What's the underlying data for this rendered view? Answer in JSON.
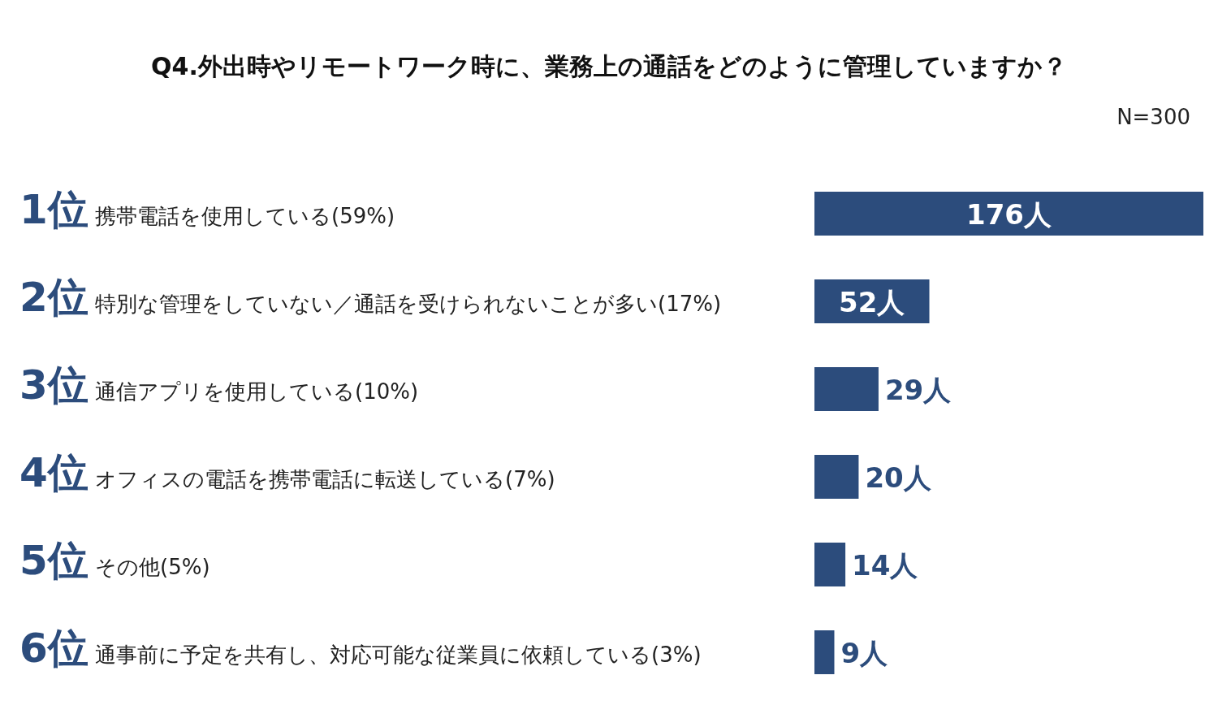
{
  "chart_data": {
    "type": "bar",
    "orientation": "horizontal",
    "title": "Q4.外出時やリモートワーク時に、業務上の通話をどのように管理していますか？",
    "annotations": [
      "N=300"
    ],
    "categories": [
      "1位 携帯電話を使用している(59%)",
      "2位 特別な管理をしていない／通話を受けられないことが多い(17%)",
      "3位 通信アプリを使用している(10%)",
      "4位 オフィスの電話を携帯電話に転送している(7%)",
      "5位 その他(5%)",
      "6位 通事前に予定を共有し、対応可能な従業員に依頼している(3%)"
    ],
    "values": [
      176,
      52,
      29,
      20,
      14,
      9
    ],
    "value_labels": [
      "176人",
      "52人",
      "29人",
      "20人",
      "14人",
      "9人"
    ],
    "color": "#2c4c7c"
  }
}
